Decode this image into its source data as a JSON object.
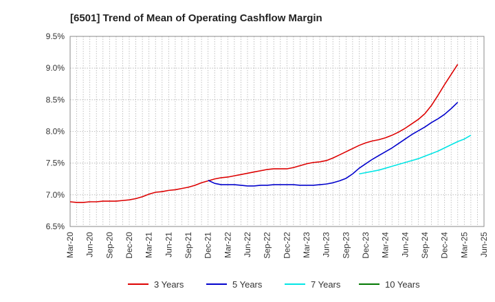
{
  "chart_data": {
    "type": "line",
    "title": "[6501]  Trend of Mean of Operating Cashflow Margin",
    "xlabel": "",
    "ylabel": "",
    "ylim": [
      6.5,
      9.5
    ],
    "yticks": [
      "6.5%",
      "7.0%",
      "7.5%",
      "8.0%",
      "8.5%",
      "9.0%",
      "9.5%"
    ],
    "x_tick_labels": [
      "Mar-20",
      "Jun-20",
      "Sep-20",
      "Dec-20",
      "Mar-21",
      "Jun-21",
      "Sep-21",
      "Dec-21",
      "Mar-22",
      "Jun-22",
      "Sep-22",
      "Dec-22",
      "Mar-23",
      "Jun-23",
      "Sep-23",
      "Dec-23",
      "Mar-24",
      "Jun-24",
      "Sep-24",
      "Dec-24",
      "Mar-25",
      "Jun-25"
    ],
    "grid": true,
    "legend_position": "bottom",
    "series": [
      {
        "name": "3 Years",
        "color": "#dd0000",
        "points": [
          [
            "Mar-20",
            6.89
          ],
          [
            "Apr-20",
            6.88
          ],
          [
            "May-20",
            6.88
          ],
          [
            "Jun-20",
            6.89
          ],
          [
            "Jul-20",
            6.89
          ],
          [
            "Aug-20",
            6.9
          ],
          [
            "Sep-20",
            6.9
          ],
          [
            "Oct-20",
            6.9
          ],
          [
            "Nov-20",
            6.91
          ],
          [
            "Dec-20",
            6.92
          ],
          [
            "Jan-21",
            6.94
          ],
          [
            "Feb-21",
            6.97
          ],
          [
            "Mar-21",
            7.01
          ],
          [
            "Apr-21",
            7.04
          ],
          [
            "May-21",
            7.05
          ],
          [
            "Jun-21",
            7.07
          ],
          [
            "Jul-21",
            7.08
          ],
          [
            "Aug-21",
            7.1
          ],
          [
            "Sep-21",
            7.12
          ],
          [
            "Oct-21",
            7.15
          ],
          [
            "Nov-21",
            7.19
          ],
          [
            "Dec-21",
            7.22
          ],
          [
            "Jan-22",
            7.25
          ],
          [
            "Feb-22",
            7.27
          ],
          [
            "Mar-22",
            7.28
          ],
          [
            "Apr-22",
            7.3
          ],
          [
            "May-22",
            7.32
          ],
          [
            "Jun-22",
            7.34
          ],
          [
            "Jul-22",
            7.36
          ],
          [
            "Aug-22",
            7.38
          ],
          [
            "Sep-22",
            7.4
          ],
          [
            "Oct-22",
            7.41
          ],
          [
            "Nov-22",
            7.41
          ],
          [
            "Dec-22",
            7.41
          ],
          [
            "Jan-23",
            7.43
          ],
          [
            "Feb-23",
            7.46
          ],
          [
            "Mar-23",
            7.49
          ],
          [
            "Apr-23",
            7.51
          ],
          [
            "May-23",
            7.52
          ],
          [
            "Jun-23",
            7.54
          ],
          [
            "Jul-23",
            7.58
          ],
          [
            "Aug-23",
            7.63
          ],
          [
            "Sep-23",
            7.68
          ],
          [
            "Oct-23",
            7.73
          ],
          [
            "Nov-23",
            7.78
          ],
          [
            "Dec-23",
            7.82
          ],
          [
            "Jan-24",
            7.85
          ],
          [
            "Feb-24",
            7.87
          ],
          [
            "Mar-24",
            7.9
          ],
          [
            "Apr-24",
            7.94
          ],
          [
            "May-24",
            7.99
          ],
          [
            "Jun-24",
            8.05
          ],
          [
            "Jul-24",
            8.12
          ],
          [
            "Aug-24",
            8.19
          ],
          [
            "Sep-24",
            8.28
          ],
          [
            "Oct-24",
            8.41
          ],
          [
            "Nov-24",
            8.57
          ],
          [
            "Dec-24",
            8.74
          ],
          [
            "Jan-25",
            8.9
          ],
          [
            "Feb-25",
            9.06
          ]
        ]
      },
      {
        "name": "5 Years",
        "color": "#0000cc",
        "points": [
          [
            "Dec-21",
            7.23
          ],
          [
            "Jan-22",
            7.18
          ],
          [
            "Feb-22",
            7.16
          ],
          [
            "Mar-22",
            7.16
          ],
          [
            "Apr-22",
            7.16
          ],
          [
            "May-22",
            7.15
          ],
          [
            "Jun-22",
            7.14
          ],
          [
            "Jul-22",
            7.14
          ],
          [
            "Aug-22",
            7.15
          ],
          [
            "Sep-22",
            7.15
          ],
          [
            "Oct-22",
            7.16
          ],
          [
            "Nov-22",
            7.16
          ],
          [
            "Dec-22",
            7.16
          ],
          [
            "Jan-23",
            7.16
          ],
          [
            "Feb-23",
            7.15
          ],
          [
            "Mar-23",
            7.15
          ],
          [
            "Apr-23",
            7.15
          ],
          [
            "May-23",
            7.16
          ],
          [
            "Jun-23",
            7.17
          ],
          [
            "Jul-23",
            7.19
          ],
          [
            "Aug-23",
            7.22
          ],
          [
            "Sep-23",
            7.26
          ],
          [
            "Oct-23",
            7.33
          ],
          [
            "Nov-23",
            7.42
          ],
          [
            "Dec-23",
            7.49
          ],
          [
            "Jan-24",
            7.56
          ],
          [
            "Feb-24",
            7.62
          ],
          [
            "Mar-24",
            7.68
          ],
          [
            "Apr-24",
            7.74
          ],
          [
            "May-24",
            7.81
          ],
          [
            "Jun-24",
            7.88
          ],
          [
            "Jul-24",
            7.95
          ],
          [
            "Aug-24",
            8.01
          ],
          [
            "Sep-24",
            8.07
          ],
          [
            "Oct-24",
            8.14
          ],
          [
            "Nov-24",
            8.2
          ],
          [
            "Dec-24",
            8.27
          ],
          [
            "Jan-25",
            8.36
          ],
          [
            "Feb-25",
            8.46
          ]
        ]
      },
      {
        "name": "7 Years",
        "color": "#00e5e5",
        "points": [
          [
            "Nov-23",
            7.33
          ],
          [
            "Dec-23",
            7.35
          ],
          [
            "Jan-24",
            7.37
          ],
          [
            "Feb-24",
            7.39
          ],
          [
            "Mar-24",
            7.42
          ],
          [
            "Apr-24",
            7.45
          ],
          [
            "May-24",
            7.48
          ],
          [
            "Jun-24",
            7.51
          ],
          [
            "Jul-24",
            7.54
          ],
          [
            "Aug-24",
            7.57
          ],
          [
            "Sep-24",
            7.61
          ],
          [
            "Oct-24",
            7.65
          ],
          [
            "Nov-24",
            7.69
          ],
          [
            "Dec-24",
            7.74
          ],
          [
            "Jan-25",
            7.79
          ],
          [
            "Feb-25",
            7.84
          ],
          [
            "Mar-25",
            7.88
          ],
          [
            "Apr-25",
            7.94
          ]
        ]
      },
      {
        "name": "10 Years",
        "color": "#007700",
        "points": []
      }
    ]
  }
}
